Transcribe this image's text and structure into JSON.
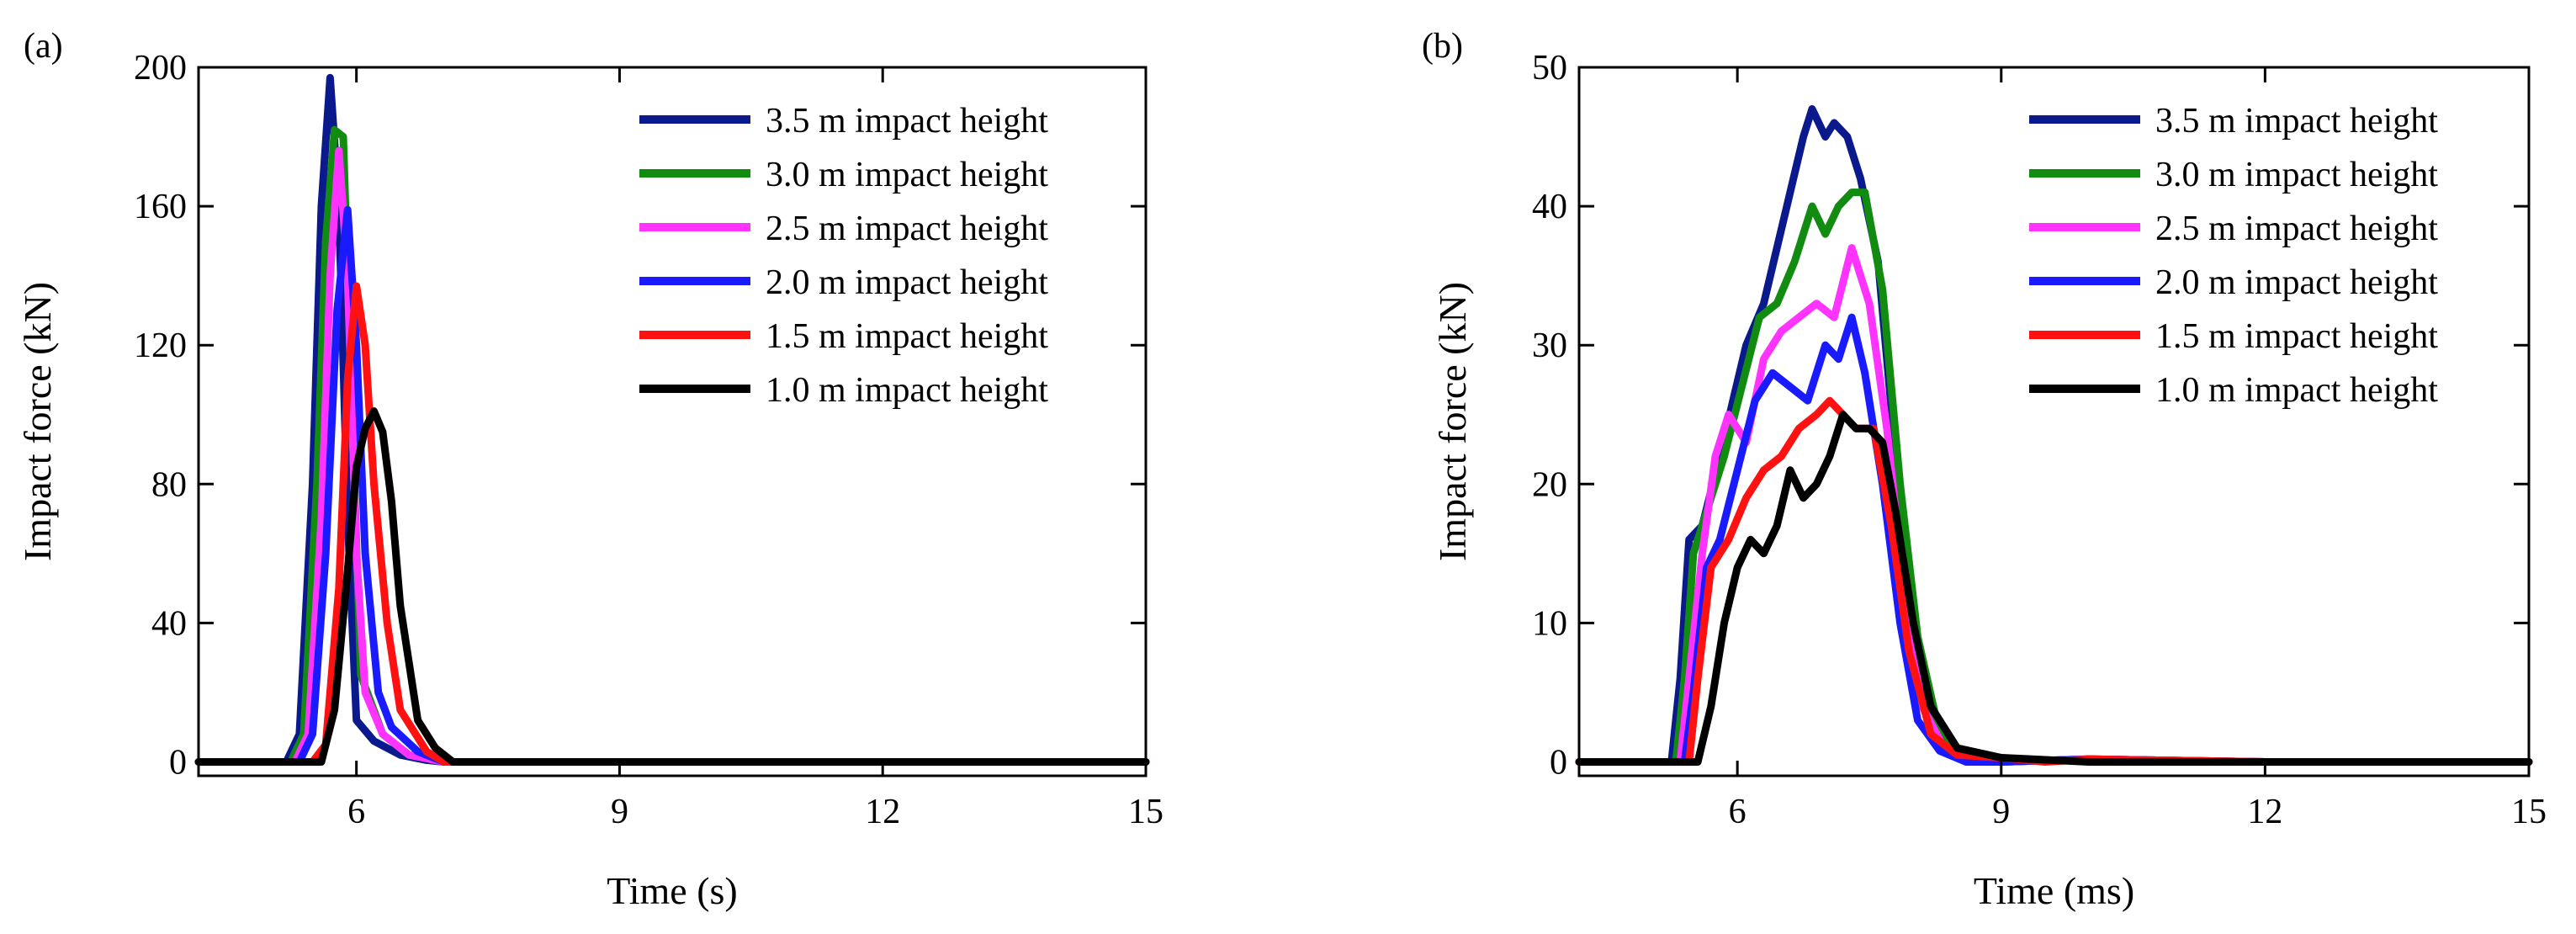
{
  "chart_data": [
    {
      "type": "line",
      "panel_label": "(a)",
      "xlabel": "Time (s)",
      "ylabel": "Impact force (kN)",
      "xlim": [
        4.2,
        15
      ],
      "ylim": [
        -4,
        200
      ],
      "xticks": [
        "6",
        "9",
        "12",
        "15"
      ],
      "yticks": [
        "0",
        "40",
        "80",
        "120",
        "160",
        "200"
      ],
      "xtick_values": [
        6,
        9,
        12,
        15
      ],
      "ytick_values": [
        0,
        40,
        80,
        120,
        160,
        200
      ],
      "legend_position": "top-right",
      "series": [
        {
          "name": "3.5 m impact height",
          "color": "#0a1a8c",
          "x": [
            4.2,
            5.2,
            5.35,
            5.5,
            5.6,
            5.7,
            5.8,
            5.9,
            6.0,
            6.2,
            6.5,
            6.8,
            7.0,
            15
          ],
          "y": [
            0,
            0,
            8,
            80,
            160,
            197,
            160,
            70,
            12,
            6,
            2,
            0.5,
            0,
            0
          ]
        },
        {
          "name": "3.0 m impact height",
          "color": "#118c11",
          "x": [
            4.2,
            5.25,
            5.4,
            5.55,
            5.65,
            5.75,
            5.85,
            5.95,
            6.05,
            6.3,
            6.6,
            6.9,
            7.0,
            15
          ],
          "y": [
            0,
            0,
            8,
            80,
            150,
            182,
            180,
            100,
            25,
            8,
            2,
            0.5,
            0,
            0
          ]
        },
        {
          "name": "2.5 m impact height",
          "color": "#ff33ff",
          "x": [
            4.2,
            5.3,
            5.45,
            5.6,
            5.7,
            5.8,
            5.9,
            6.0,
            6.1,
            6.3,
            6.6,
            6.9,
            7.0,
            15
          ],
          "y": [
            0,
            0,
            8,
            70,
            140,
            176,
            140,
            60,
            20,
            8,
            2,
            0.5,
            0,
            0
          ]
        },
        {
          "name": "2.0 m impact height",
          "color": "#1a1aff",
          "x": [
            4.2,
            5.35,
            5.5,
            5.65,
            5.78,
            5.9,
            6.0,
            6.1,
            6.25,
            6.4,
            6.7,
            7.0,
            15
          ],
          "y": [
            0,
            0,
            8,
            60,
            130,
            159,
            120,
            60,
            20,
            10,
            3,
            0,
            0
          ]
        },
        {
          "name": "1.5 m impact height",
          "color": "#ff1111",
          "x": [
            4.2,
            5.5,
            5.65,
            5.8,
            5.9,
            6.0,
            6.1,
            6.2,
            6.35,
            6.5,
            6.8,
            7.0,
            15
          ],
          "y": [
            0,
            0,
            5,
            50,
            110,
            137,
            120,
            80,
            40,
            15,
            3,
            0,
            0
          ]
        },
        {
          "name": "1.0 m impact height",
          "color": "#000000",
          "x": [
            4.2,
            5.6,
            5.75,
            5.9,
            6.0,
            6.1,
            6.2,
            6.3,
            6.4,
            6.5,
            6.7,
            6.9,
            7.1,
            15
          ],
          "y": [
            0,
            0,
            15,
            55,
            85,
            96,
            101,
            95,
            75,
            45,
            12,
            4,
            0,
            0
          ]
        }
      ]
    },
    {
      "type": "line",
      "panel_label": "(b)",
      "xlabel": "Time (ms)",
      "ylabel": "Impact force (kN)",
      "xlim": [
        4.2,
        15
      ],
      "ylim": [
        -1,
        50
      ],
      "xticks": [
        "6",
        "9",
        "12",
        "15"
      ],
      "yticks": [
        "0",
        "10",
        "20",
        "30",
        "40",
        "50"
      ],
      "xtick_values": [
        6,
        9,
        12,
        15
      ],
      "ytick_values": [
        0,
        10,
        20,
        30,
        40,
        50
      ],
      "legend_position": "top-right",
      "series": [
        {
          "name": "3.5 m impact height",
          "color": "#0a1a8c",
          "x": [
            4.2,
            5.25,
            5.35,
            5.45,
            5.6,
            5.8,
            5.95,
            6.1,
            6.3,
            6.45,
            6.6,
            6.75,
            6.85,
            7.0,
            7.1,
            7.25,
            7.4,
            7.6,
            7.8,
            8.0,
            8.2,
            8.5,
            9.0,
            10,
            12,
            15
          ],
          "y": [
            0,
            0,
            6,
            16,
            17,
            22,
            26,
            30,
            33,
            37,
            41,
            45,
            47,
            45,
            46,
            45,
            42,
            36,
            22,
            10,
            3,
            0.5,
            0,
            0.2,
            0,
            0
          ]
        },
        {
          "name": "3.0 m impact height",
          "color": "#118c11",
          "x": [
            4.2,
            5.3,
            5.4,
            5.5,
            5.65,
            5.85,
            6.05,
            6.25,
            6.45,
            6.65,
            6.85,
            7.0,
            7.15,
            7.3,
            7.45,
            7.65,
            7.85,
            8.05,
            8.3,
            8.6,
            9.0,
            10,
            12,
            15
          ],
          "y": [
            0,
            0,
            6,
            15,
            18,
            22,
            27,
            32,
            33,
            36,
            40,
            38,
            40,
            41,
            41,
            34,
            20,
            9,
            2,
            0.5,
            0,
            0.2,
            0,
            0
          ]
        },
        {
          "name": "2.5 m impact height",
          "color": "#ff33ff",
          "x": [
            4.2,
            5.35,
            5.45,
            5.6,
            5.75,
            5.9,
            6.1,
            6.3,
            6.5,
            6.7,
            6.9,
            7.1,
            7.3,
            7.5,
            7.7,
            7.9,
            8.1,
            8.35,
            8.7,
            9.0,
            10,
            12,
            15
          ],
          "y": [
            0,
            0,
            6,
            15,
            22,
            25,
            23,
            29,
            31,
            32,
            33,
            32,
            37,
            33,
            24,
            12,
            4,
            1,
            0,
            0,
            0.2,
            0,
            0
          ]
        },
        {
          "name": "2.0 m impact height",
          "color": "#1a1aff",
          "x": [
            4.2,
            5.4,
            5.5,
            5.65,
            5.8,
            6.0,
            6.2,
            6.4,
            6.6,
            6.8,
            7.0,
            7.15,
            7.3,
            7.45,
            7.65,
            7.85,
            8.05,
            8.3,
            8.6,
            9.0,
            10,
            12,
            15
          ],
          "y": [
            0,
            0,
            5,
            14,
            16,
            21,
            26,
            28,
            27,
            26,
            30,
            29,
            32,
            28,
            20,
            10,
            3,
            0.8,
            0,
            0,
            0.2,
            0,
            0
          ]
        },
        {
          "name": "1.5 m impact height",
          "color": "#ff1111",
          "x": [
            4.2,
            5.45,
            5.55,
            5.7,
            5.9,
            6.1,
            6.3,
            6.5,
            6.7,
            6.9,
            7.05,
            7.2,
            7.35,
            7.55,
            7.75,
            7.95,
            8.2,
            8.5,
            9.0,
            9.5,
            10,
            12,
            15
          ],
          "y": [
            0,
            0,
            6,
            14,
            16,
            19,
            21,
            22,
            24,
            25,
            26,
            25,
            24,
            24,
            17,
            8,
            2,
            0.5,
            0.3,
            0,
            0.2,
            0,
            0
          ]
        },
        {
          "name": "1.0 m impact height",
          "color": "#000000",
          "x": [
            4.2,
            5.55,
            5.7,
            5.85,
            6.0,
            6.15,
            6.3,
            6.45,
            6.6,
            6.75,
            6.9,
            7.05,
            7.2,
            7.35,
            7.5,
            7.65,
            7.8,
            8.0,
            8.2,
            8.5,
            9.0,
            10,
            12,
            15
          ],
          "y": [
            0,
            0,
            4,
            10,
            14,
            16,
            15,
            17,
            21,
            19,
            20,
            22,
            25,
            24,
            24,
            23,
            18,
            10,
            4,
            1,
            0.3,
            0,
            0,
            0
          ]
        }
      ]
    }
  ]
}
